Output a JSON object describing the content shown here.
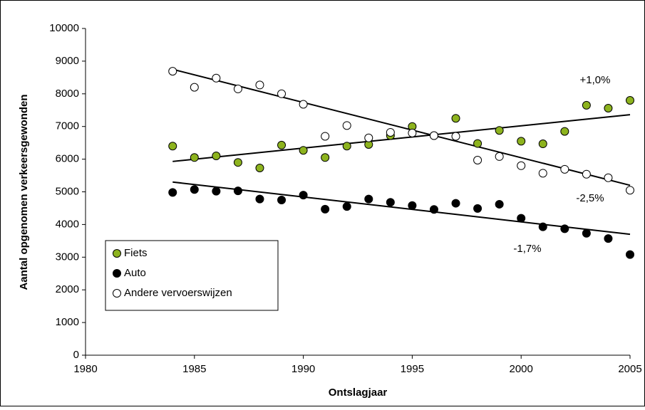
{
  "chart_data": {
    "type": "scatter",
    "x_label": "Ontslagjaar",
    "y_label": "Aantal opgenomen verkeersgewonden",
    "x": [
      1984,
      1985,
      1986,
      1987,
      1988,
      1989,
      1990,
      1991,
      1992,
      1993,
      1994,
      1995,
      1996,
      1997,
      1998,
      1999,
      2000,
      2001,
      2002,
      2003,
      2004,
      2005
    ],
    "series": [
      {
        "name": "Fiets",
        "color": "#8db31e",
        "values": [
          6400,
          6050,
          6100,
          5900,
          5730,
          6430,
          6270,
          6050,
          6400,
          6450,
          6720,
          7000,
          6720,
          7250,
          6480,
          6880,
          6550,
          6470,
          6850,
          7650,
          7560,
          7800
        ]
      },
      {
        "name": "Auto",
        "color": "#000000",
        "values": [
          4980,
          5070,
          5020,
          5030,
          4780,
          4750,
          4900,
          4470,
          4550,
          4780,
          4680,
          4580,
          4460,
          4650,
          4490,
          4620,
          4190,
          3930,
          3870,
          3730,
          3570,
          3080
        ]
      },
      {
        "name": "Andere vervoerswijzen",
        "color": "#ffffff",
        "values": [
          8690,
          8200,
          8480,
          8150,
          8270,
          8000,
          7680,
          6700,
          7030,
          6650,
          6820,
          6800,
          6720,
          6700,
          5970,
          6080,
          5800,
          5570,
          5690,
          5540,
          5430,
          5050
        ]
      }
    ],
    "trendlines": [
      {
        "x": [
          1984,
          2005
        ],
        "values": [
          5930,
          7360
        ],
        "label": "+1,0%"
      },
      {
        "x": [
          1984,
          2005
        ],
        "values": [
          5300,
          3700
        ],
        "label": "-1,7%"
      },
      {
        "x": [
          1984,
          2005
        ],
        "values": [
          8750,
          5200
        ],
        "label": "-2,5%"
      }
    ],
    "xlim": [
      1980,
      2005
    ],
    "xticks": [
      1980,
      1985,
      1990,
      1995,
      2000,
      2005
    ],
    "ylim": [
      0,
      10000
    ],
    "yticks": [
      0,
      1000,
      2000,
      3000,
      4000,
      5000,
      6000,
      7000,
      8000,
      9000,
      10000
    ],
    "legend": "lower-left"
  }
}
